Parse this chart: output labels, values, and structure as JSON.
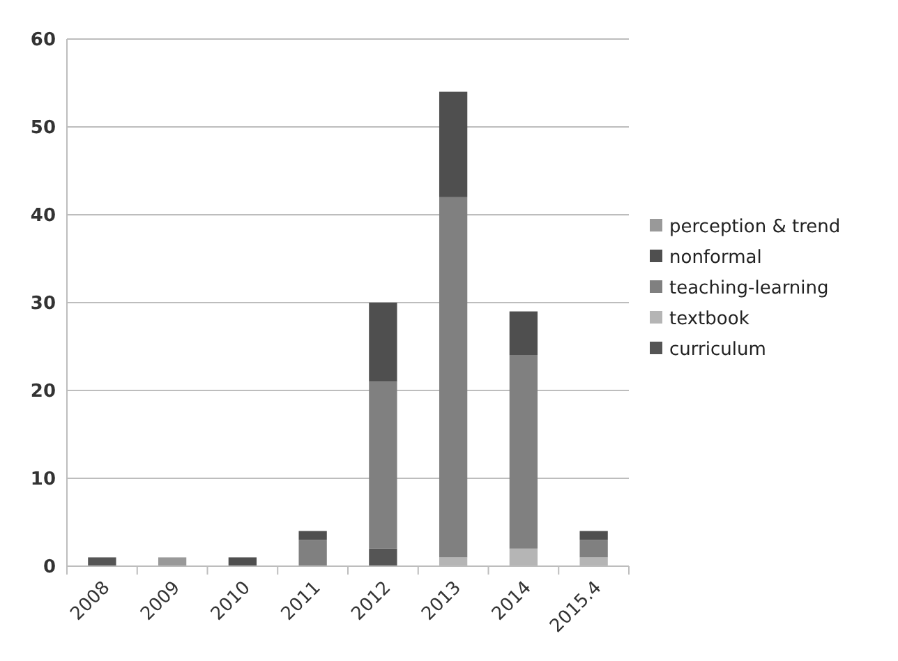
{
  "chart_data": {
    "type": "bar",
    "stacked": true,
    "categories": [
      "2008",
      "2009",
      "2010",
      "2011",
      "2012",
      "2013",
      "2014",
      "2015.4"
    ],
    "series": [
      {
        "name": "curriculum",
        "color": "#555555",
        "values": [
          1,
          0,
          0,
          0,
          2,
          0,
          0,
          0
        ]
      },
      {
        "name": "textbook",
        "color": "#b5b5b5",
        "values": [
          0,
          0,
          0,
          0,
          0,
          1,
          2,
          1
        ]
      },
      {
        "name": "teaching-learning",
        "color": "#808080",
        "values": [
          0,
          0,
          0,
          3,
          19,
          41,
          22,
          2
        ]
      },
      {
        "name": "nonformal",
        "color": "#4f4f4f",
        "values": [
          0,
          0,
          1,
          1,
          9,
          12,
          5,
          1
        ]
      },
      {
        "name": "perception & trend",
        "color": "#999999",
        "values": [
          0,
          1,
          0,
          0,
          0,
          0,
          0,
          0
        ]
      }
    ],
    "ylim": [
      0,
      60
    ],
    "yticks": [
      0,
      10,
      20,
      30,
      40,
      50,
      60
    ],
    "grid": "y",
    "legend": "right"
  }
}
